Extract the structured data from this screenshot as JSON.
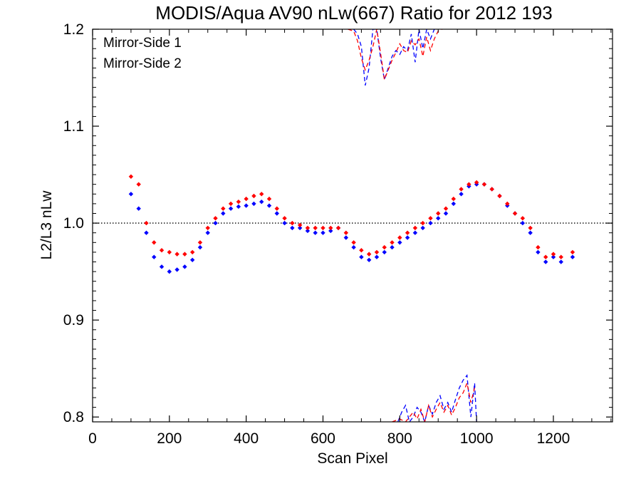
{
  "chart_data": {
    "type": "scatter",
    "title": "MODIS/Aqua AV90 nLw(667) Ratio for 2012 193",
    "xlabel": "Scan Pixel",
    "ylabel": "L2/L3 nLw",
    "xlim": [
      0,
      1354
    ],
    "ylim": [
      0.795,
      1.2
    ],
    "x_ticks": [
      0,
      200,
      400,
      600,
      800,
      1000,
      1200
    ],
    "y_ticks": [
      0.8,
      0.9,
      1.0,
      1.1,
      1.2
    ],
    "x_tick_labels": [
      "0",
      "200",
      "400",
      "600",
      "800",
      "1000",
      "1200"
    ],
    "y_tick_labels": [
      "0.8",
      "0.9",
      "1.0",
      "1.1",
      "1.2"
    ],
    "reference_line": {
      "y": 1.0,
      "style": "dotted"
    },
    "grid": false,
    "legend_position": "top-left",
    "series": [
      {
        "name": "Mirror-Side 1",
        "color": "#0000ff",
        "x": [
          100,
          120,
          140,
          160,
          180,
          200,
          220,
          240,
          260,
          280,
          300,
          320,
          340,
          360,
          380,
          400,
          420,
          440,
          460,
          480,
          500,
          520,
          540,
          560,
          580,
          600,
          620,
          640,
          660,
          680,
          700,
          720,
          740,
          760,
          780,
          800,
          820,
          840,
          860,
          880,
          900,
          920,
          940,
          960,
          980,
          1000,
          1020,
          1040,
          1060,
          1080,
          1100,
          1120,
          1140,
          1160,
          1180,
          1200,
          1220,
          1250
        ],
        "y": [
          1.03,
          1.015,
          0.99,
          0.965,
          0.955,
          0.95,
          0.952,
          0.955,
          0.962,
          0.975,
          0.99,
          1.0,
          1.01,
          1.015,
          1.017,
          1.018,
          1.02,
          1.022,
          1.018,
          1.01,
          1.0,
          0.995,
          0.995,
          0.992,
          0.99,
          0.99,
          0.992,
          0.995,
          0.985,
          0.975,
          0.965,
          0.962,
          0.965,
          0.97,
          0.975,
          0.98,
          0.985,
          0.99,
          0.995,
          1.0,
          1.005,
          1.01,
          1.02,
          1.03,
          1.038,
          1.04,
          1.04,
          1.035,
          1.028,
          1.018,
          1.01,
          1.0,
          0.99,
          0.97,
          0.96,
          0.965,
          0.96,
          0.965
        ]
      },
      {
        "name": "Mirror-Side 2",
        "color": "#ff0000",
        "x": [
          100,
          120,
          140,
          160,
          180,
          200,
          220,
          240,
          260,
          280,
          300,
          320,
          340,
          360,
          380,
          400,
          420,
          440,
          460,
          480,
          500,
          520,
          540,
          560,
          580,
          600,
          620,
          640,
          660,
          680,
          700,
          720,
          740,
          760,
          780,
          800,
          820,
          840,
          860,
          880,
          900,
          920,
          940,
          960,
          980,
          1000,
          1020,
          1040,
          1060,
          1080,
          1100,
          1120,
          1140,
          1160,
          1180,
          1200,
          1220,
          1250
        ],
        "y": [
          1.048,
          1.04,
          1.0,
          0.98,
          0.972,
          0.97,
          0.968,
          0.968,
          0.97,
          0.98,
          0.995,
          1.005,
          1.015,
          1.02,
          1.022,
          1.025,
          1.028,
          1.03,
          1.025,
          1.015,
          1.005,
          1.0,
          0.998,
          0.995,
          0.995,
          0.995,
          0.995,
          0.995,
          0.99,
          0.98,
          0.972,
          0.968,
          0.97,
          0.975,
          0.98,
          0.985,
          0.99,
          0.995,
          1.0,
          1.005,
          1.01,
          1.015,
          1.025,
          1.035,
          1.04,
          1.042,
          1.04,
          1.035,
          1.028,
          1.02,
          1.01,
          1.005,
          0.995,
          0.975,
          0.965,
          0.968,
          0.965,
          0.97
        ]
      }
    ],
    "lines": [
      {
        "name": "Mirror-Side 1 upper",
        "color": "#0000ff",
        "style": "dashed",
        "x": [
          680,
          690,
          700,
          710,
          720,
          730,
          740,
          750,
          760,
          770,
          780,
          790,
          800,
          810,
          820,
          830,
          840,
          850,
          860,
          870,
          880,
          890,
          900
        ],
        "y": [
          1.2,
          1.195,
          1.182,
          1.142,
          1.16,
          1.2,
          1.2,
          1.17,
          1.148,
          1.16,
          1.172,
          1.178,
          1.174,
          1.182,
          1.178,
          1.195,
          1.166,
          1.2,
          1.18,
          1.2,
          1.19,
          1.2,
          1.2
        ]
      },
      {
        "name": "Mirror-Side 2 upper",
        "color": "#ff0000",
        "style": "dashed",
        "x": [
          665,
          680,
          690,
          700,
          710,
          720,
          730,
          740,
          750,
          760,
          770,
          780,
          790,
          800,
          810,
          820,
          830,
          840,
          850,
          860,
          870,
          880,
          890,
          900,
          910
        ],
        "y": [
          1.2,
          1.198,
          1.188,
          1.17,
          1.158,
          1.168,
          1.182,
          1.2,
          1.175,
          1.148,
          1.158,
          1.168,
          1.176,
          1.185,
          1.178,
          1.176,
          1.188,
          1.184,
          1.19,
          1.172,
          1.192,
          1.178,
          1.19,
          1.198,
          1.2
        ]
      },
      {
        "name": "Mirror-Side 1 lower",
        "color": "#0000ff",
        "style": "dashed",
        "x": [
          795,
          805,
          815,
          825,
          835,
          845,
          855,
          865,
          875,
          885,
          895,
          905,
          915,
          925,
          935,
          945,
          955,
          965,
          975,
          985,
          995,
          1000
        ],
        "y": [
          0.795,
          0.805,
          0.812,
          0.795,
          0.8,
          0.81,
          0.805,
          0.795,
          0.812,
          0.803,
          0.815,
          0.822,
          0.808,
          0.815,
          0.805,
          0.818,
          0.83,
          0.838,
          0.843,
          0.8,
          0.835,
          0.795
        ]
      },
      {
        "name": "Mirror-Side 2 lower",
        "color": "#ff0000",
        "style": "dashed",
        "x": [
          780,
          800,
          815,
          825,
          835,
          845,
          855,
          865,
          875,
          885,
          895,
          905,
          915,
          925,
          935,
          945,
          955,
          965,
          975,
          985,
          995
        ],
        "y": [
          0.795,
          0.798,
          0.795,
          0.8,
          0.805,
          0.798,
          0.808,
          0.795,
          0.812,
          0.8,
          0.808,
          0.815,
          0.805,
          0.812,
          0.802,
          0.81,
          0.82,
          0.825,
          0.835,
          0.815,
          0.83
        ]
      }
    ]
  }
}
